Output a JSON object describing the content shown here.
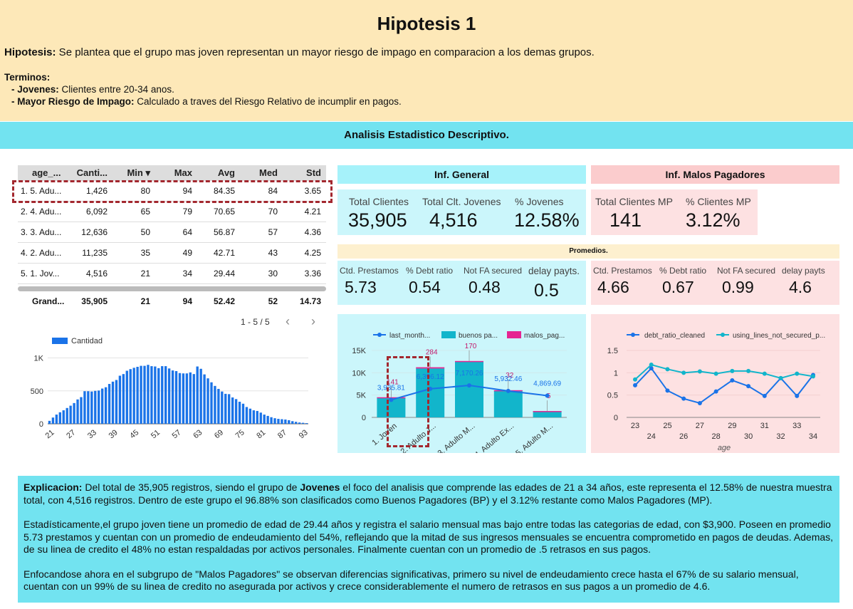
{
  "header": {
    "title": "Hipotesis 1",
    "hyp_label": "Hipotesis:",
    "hyp_text": " Se plantea que el grupo mas joven representan un mayor riesgo de impago en comparacion a los demas grupos.",
    "terms_label": "Terminos:",
    "term1_label": "- Jovenes:",
    "term1_text": " Clientes entre 20-34 anos.",
    "term2_label": "- Mayor Riesgo de Impago:",
    "term2_text": " Calculado a traves del Riesgo Relativo de incumplir en pagos."
  },
  "section_title": "Analisis Estadistico Descriptivo.",
  "table": {
    "headers": [
      "age_...",
      "Canti...",
      "Min ▾",
      "Max",
      "Avg",
      "Med",
      "Std"
    ],
    "rows": [
      [
        "1.  5. Adu...",
        "1,426",
        "80",
        "94",
        "84.35",
        "84",
        "3.65"
      ],
      [
        "2.  4. Adu...",
        "6,092",
        "65",
        "79",
        "70.65",
        "70",
        "4.21"
      ],
      [
        "3.  3. Adu...",
        "12,636",
        "50",
        "64",
        "56.87",
        "57",
        "4.36"
      ],
      [
        "4.  2. Adu...",
        "11,235",
        "35",
        "49",
        "42.71",
        "43",
        "4.25"
      ],
      [
        "5.  1. Jov...",
        "4,516",
        "21",
        "34",
        "29.44",
        "30",
        "3.36"
      ]
    ],
    "total": [
      "Grand...",
      "35,905",
      "21",
      "94",
      "52.42",
      "52",
      "14.73"
    ],
    "pager": "1 - 5 / 5",
    "prev_icon": "‹",
    "next_icon": "›"
  },
  "inf_general": {
    "title": "Inf. General",
    "total_clientes_label": "Total Clientes",
    "total_clientes": "35,905",
    "total_jovenes_label": "Total Clt. Jovenes",
    "total_jovenes": "4,516",
    "pct_jovenes_label": "% Jovenes",
    "pct_jovenes": "12.58%"
  },
  "inf_malos": {
    "title": "Inf. Malos Pagadores",
    "total_mp_label": "Total Clientes MP",
    "total_mp": "141",
    "pct_mp_label": "% Clientes MP",
    "pct_mp": "3.12%"
  },
  "promedios": {
    "title": "Promedios.",
    "general": [
      {
        "label": "Ctd. Prestamos",
        "value": "5.73"
      },
      {
        "label": "% Debt ratio",
        "value": "0.54"
      },
      {
        "label": "Not FA secured",
        "value": "0.48"
      },
      {
        "label": "delay payts.",
        "value": "0.5"
      }
    ],
    "malos": [
      {
        "label": "Ctd. Prestamos",
        "value": "4.66"
      },
      {
        "label": "% Debt ratio",
        "value": "0.67"
      },
      {
        "label": "Not FA secured",
        "value": "0.99"
      },
      {
        "label": "delay payts",
        "value": "4.6"
      }
    ]
  },
  "chart_data": [
    {
      "type": "bar",
      "legend": [
        "Cantidad"
      ],
      "xlabel": "",
      "ylabel": "",
      "x_ticks": [
        "21",
        "27",
        "33",
        "39",
        "45",
        "51",
        "57",
        "63",
        "69",
        "75",
        "81",
        "87",
        "93"
      ],
      "y_ticks": [
        "0",
        "500",
        "1K"
      ],
      "ylim": [
        0,
        1200
      ],
      "x_start": 21,
      "values": [
        45,
        95,
        140,
        175,
        205,
        240,
        275,
        315,
        370,
        405,
        495,
        495,
        490,
        500,
        505,
        535,
        555,
        605,
        640,
        665,
        730,
        755,
        805,
        830,
        850,
        865,
        880,
        880,
        895,
        875,
        870,
        845,
        875,
        875,
        840,
        810,
        800,
        770,
        765,
        765,
        780,
        755,
        870,
        835,
        750,
        690,
        630,
        575,
        530,
        490,
        455,
        450,
        400,
        375,
        335,
        305,
        255,
        230,
        205,
        195,
        170,
        140,
        120,
        100,
        85,
        75,
        70,
        65,
        55,
        40,
        30,
        20,
        15,
        10
      ]
    },
    {
      "type": "bar",
      "legend": [
        "last_month...",
        "buenos pa...",
        "malos_pag..."
      ],
      "categories": [
        "1. Joven",
        "2. Adulto J...",
        "3. Adulto M...",
        "4. Adulto Ex...",
        "5. Adulto M..."
      ],
      "y_ticks": [
        "0",
        "5K",
        "10K",
        "15K"
      ],
      "ylim": [
        0,
        15000
      ],
      "series": [
        {
          "name": "buenos pa...",
          "values": [
            4375,
            10951,
            12466,
            6060,
            1421
          ]
        },
        {
          "name": "malos_pag...",
          "values": [
            141,
            284,
            170,
            32,
            5
          ]
        },
        {
          "name": "last_month...",
          "values": [
            3935.81,
            6396.12,
            7170.26,
            5932.46,
            4869.69
          ]
        }
      ],
      "labels_line": [
        "3,935.81",
        "6,396.12",
        "7,170.26",
        "5,932.46",
        "4,869.69"
      ],
      "labels_malos": [
        "141",
        "284",
        "170",
        "32",
        "5"
      ]
    },
    {
      "type": "line",
      "legend": [
        "debt_ratio_cleaned",
        "using_lines_not_secured_p..."
      ],
      "xlabel": "age",
      "x_ticks_top": [
        "23",
        "25",
        "27",
        "29",
        "31",
        "33"
      ],
      "x_ticks_bottom": [
        "24",
        "26",
        "28",
        "30",
        "32",
        "34"
      ],
      "y_ticks": [
        "0",
        "0.5",
        "1",
        "1.5"
      ],
      "ylim": [
        0,
        1.5
      ],
      "x": [
        23,
        24,
        25,
        26,
        27,
        28,
        29,
        30,
        31,
        32,
        33,
        34
      ],
      "series": [
        {
          "name": "debt_ratio_cleaned",
          "values": [
            0.72,
            1.1,
            0.6,
            0.42,
            0.32,
            0.58,
            0.83,
            0.7,
            0.48,
            0.88,
            0.48,
            0.95
          ]
        },
        {
          "name": "using_lines_not_secured_p...",
          "values": [
            0.85,
            1.18,
            1.08,
            1.0,
            1.03,
            0.98,
            1.04,
            1.04,
            0.98,
            0.88,
            0.98,
            0.92
          ]
        }
      ]
    }
  ],
  "explain": {
    "p1_label": "Explicacion:",
    "p1_a": " Del total de 35,905 registros, siendo el grupo de ",
    "p1_bold": "Jovenes",
    "p1_b": " el foco del analisis que comprende las edades de 21 a 34 años, este representa el 12.58% de nuestra muestra total, con 4,516 registros. Dentro de este grupo el 96.88% son clasificados como Buenos Pagadores (BP)  y el 3.12% restante como Malos Pagadores (MP).",
    "p2": "Estadísticamente,el grupo joven tiene un promedio de edad de 29.44 años y registra el salario mensual mas bajo entre todas las categorias de edad, con $3,900. Poseen en promedio 5.73 prestamos y cuentan con un promedio de endeudamiento del 54%, reflejando que la mitad de sus ingresos mensuales se encuentra comprometido en pagos de deudas. Ademas, de su linea de credito el 48% no estan respaldadas por activos personales. Finalmente cuentan con un promedio de .5 retrasos en sus pagos.",
    "p3": "Enfocandose ahora en el subgrupo de \"Malos Pagadores\" se observan diferencias significativas, primero su nivel de endeudamiento crece hasta el 67% de su salario mensual, cuentan con un 99% de su linea de credito no asegurada por activos y crece considerablemente el numero de retrasos en sus pagos a un promedio de 4.6."
  },
  "colors": {
    "header_bg": "#fde8b8",
    "cyan": "#72e3f0",
    "blue_bar": "#1a73e8",
    "teal": "#12b5cb",
    "magenta": "#e52592",
    "pink_panel": "#fde1e2",
    "pink_header": "#fbcccd",
    "lightcyan_panel": "#cbf6fb",
    "lightcyan_header": "#a6f2fa"
  }
}
